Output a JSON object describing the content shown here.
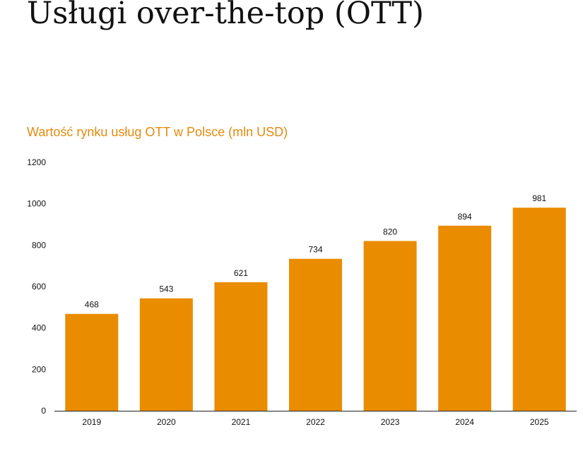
{
  "page": {
    "title": "Usługi over-the-top (OTT)"
  },
  "colors": {
    "bar": "#EA8C00",
    "chart_title": "#E48A0D"
  },
  "chart_data": {
    "type": "bar",
    "title": "Wartość rynku usług OTT w Polsce (mln USD)",
    "categories": [
      "2019",
      "2020",
      "2021",
      "2022",
      "2023",
      "2024",
      "2025"
    ],
    "values": [
      468,
      543,
      621,
      734,
      820,
      894,
      981
    ],
    "yticks": [
      0,
      200,
      400,
      600,
      800,
      1000,
      1200
    ],
    "ylim": [
      0,
      1200
    ],
    "xlabel": "",
    "ylabel": "",
    "grid": false,
    "data_labels": true
  }
}
